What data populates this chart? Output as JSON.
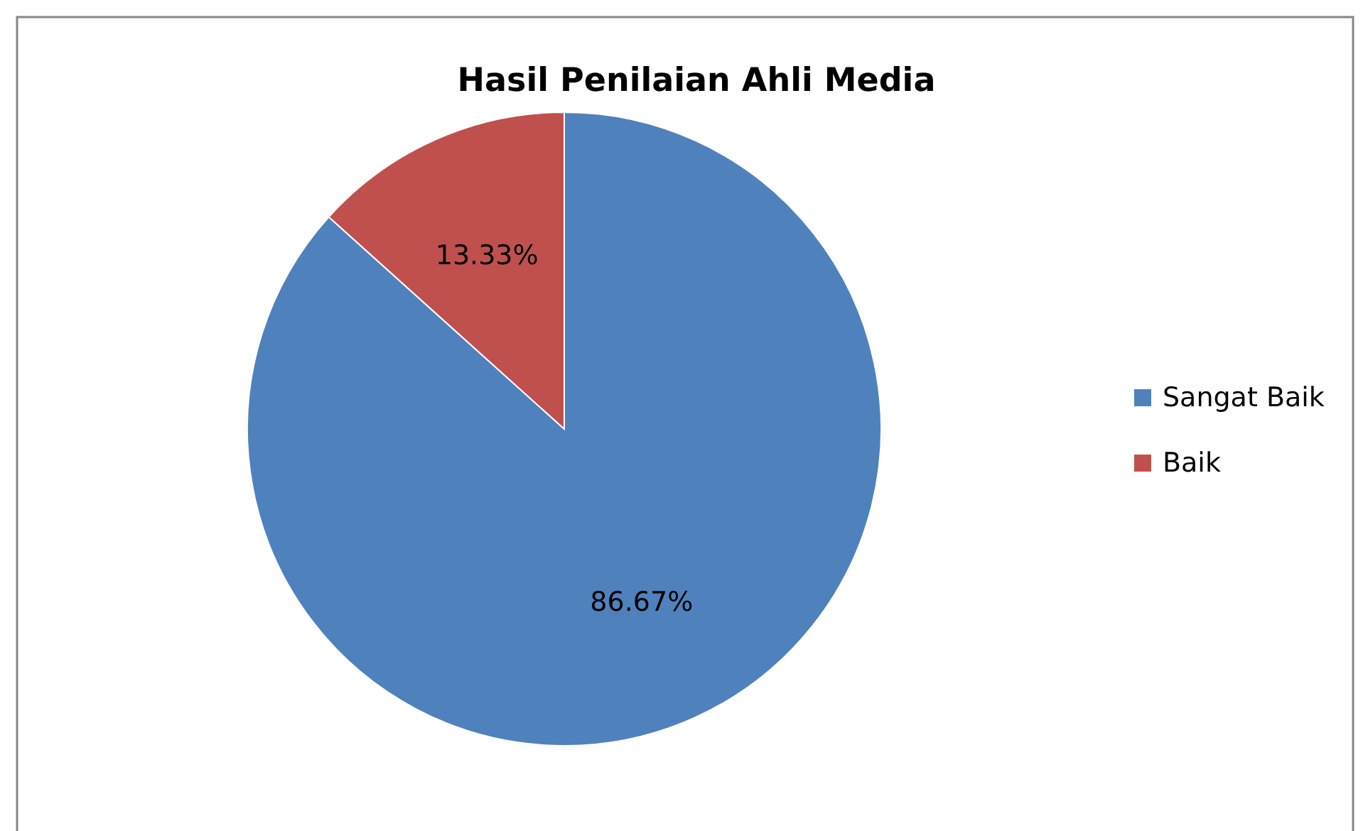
{
  "chart_data": {
    "type": "pie",
    "title": "Hasil Penilaian Ahli Media",
    "categories": [
      "Sangat Baik",
      "Baik"
    ],
    "values": [
      86.67,
      13.33
    ],
    "colors": [
      "#4f81bd",
      "#c0504d"
    ],
    "value_labels": [
      "86.67%",
      "13.33%"
    ],
    "legend": "right"
  }
}
